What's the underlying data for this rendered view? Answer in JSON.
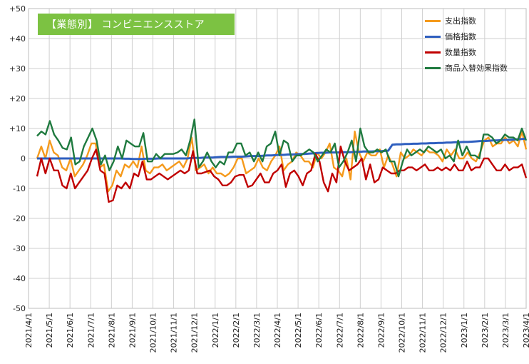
{
  "chart_data": {
    "type": "line",
    "title": "【業態別】 コンビニエンスストア",
    "ylim": [
      -50,
      50
    ],
    "y_ticks": [
      "+50",
      "+40",
      "+30",
      "+20",
      "+10",
      "0",
      "-10",
      "-20",
      "-30",
      "-40",
      "-50"
    ],
    "x_ticks": [
      "2021/4/1",
      "2021/5/1",
      "2021/6/1",
      "2021/7/1",
      "2021/8/1",
      "2021/9/1",
      "2021/10/1",
      "2021/11/1",
      "2021/12/1",
      "2022/1/1",
      "2022/2/1",
      "2022/3/1",
      "2022/4/1",
      "2022/5/1",
      "2022/6/1",
      "2022/7/1",
      "2022/8/1",
      "2022/9/1",
      "2022/10/1",
      "2022/11/1",
      "2022/12/1",
      "2023/1/1",
      "2023/2/1",
      "2023/3/1",
      "2023/4/1"
    ],
    "x_start": "2021-04-05",
    "x_step_days": 7,
    "grid": true,
    "legend_position": "top-right",
    "series": [
      {
        "name": "支出指数",
        "color": "#f59a1c",
        "values": [
          0,
          4,
          0,
          6,
          2,
          1,
          -3,
          -4,
          0,
          -6,
          -4,
          -2,
          1,
          5,
          5,
          -3,
          -2,
          -11,
          -9,
          -4,
          -6,
          -2,
          -3,
          -1,
          -3,
          4,
          -4,
          -5,
          -3,
          -3,
          -2,
          -4,
          -3,
          -2,
          -1,
          -3,
          0,
          7,
          -4,
          -3,
          -2,
          -5,
          -3,
          -5,
          -5,
          -6,
          -5,
          -3,
          0,
          0,
          -5,
          -4,
          -3,
          0,
          -3,
          -4,
          -1,
          1,
          4,
          -4,
          -2,
          -1,
          2,
          1,
          -1,
          -1,
          -3,
          2,
          0,
          2,
          5,
          -3,
          -4,
          -6,
          0,
          -7,
          9,
          2,
          -1,
          2,
          1,
          1,
          3,
          -3,
          1,
          -2,
          -6,
          2,
          0,
          1,
          3,
          2,
          1,
          3,
          2,
          2,
          1,
          -1,
          3,
          1,
          3,
          0,
          0,
          2,
          0,
          -1,
          2,
          6,
          7,
          4,
          5,
          5,
          7,
          5,
          6,
          4,
          9,
          3
        ],
        "visible_dates": "2021/4/1–2023/4/1"
      },
      {
        "name": "価格指数",
        "color": "#2f5fbf",
        "values": [
          0,
          0,
          0,
          0,
          0,
          0,
          0,
          0,
          0,
          0,
          0,
          0,
          0,
          0,
          0,
          0,
          0,
          0,
          0,
          0,
          0,
          -0.1,
          -0.1,
          -0.2,
          -0.2,
          -0.2,
          -0.1,
          -0.1,
          -0.1,
          0,
          0,
          0,
          0,
          0,
          0,
          0,
          0,
          0.2,
          0.2,
          0.2,
          0.3,
          0.3,
          0.3,
          0.4,
          0.5,
          0.5,
          0.5,
          0.6,
          0.6,
          0.6,
          0.7,
          0.8,
          0.8,
          0.8,
          0.9,
          1,
          1,
          1.1,
          1.2,
          1.2,
          1.3,
          1.3,
          1.4,
          1.5,
          1.5,
          1.6,
          1.7,
          1.8,
          1.9,
          1.9,
          2,
          2,
          2,
          2.1,
          2.1,
          2.1,
          2.2,
          2.2,
          2.3,
          2.3,
          2.3,
          2.4,
          2.4,
          2.5,
          2.6,
          4.6,
          4.7,
          4.7,
          4.8,
          4.8,
          4.9,
          4.9,
          5,
          5,
          5.1,
          5.1,
          5.2,
          5.2,
          5.3,
          5.3,
          5.4,
          5.4,
          5.5,
          5.5,
          5.6,
          5.7,
          5.8,
          5.8,
          5.9,
          6,
          6,
          6.1,
          6.2,
          6.2,
          6.3,
          6.4,
          6.5,
          6.6
        ]
      },
      {
        "name": "数量指数",
        "color": "#c00000",
        "values": [
          -6,
          0,
          -5,
          0,
          -4,
          -4,
          -9,
          -10,
          -5,
          -10,
          -8,
          -6,
          -4,
          0,
          3,
          -4,
          -5,
          -14.5,
          -14,
          -9,
          -10,
          -8,
          -10,
          -5,
          -6,
          -1,
          -7,
          -7,
          -6,
          -5,
          -6,
          -7,
          -6,
          -5,
          -4,
          -5,
          -4,
          2.5,
          -5,
          -5,
          -4.5,
          -4,
          -6,
          -7,
          -9,
          -9,
          -8,
          -6,
          -5.5,
          -5.5,
          -9.5,
          -9,
          -7,
          -5,
          -8,
          -8,
          -5,
          -4,
          -2,
          -9.5,
          -5,
          -4,
          -6,
          -9,
          -5,
          -4,
          1.5,
          -1,
          -8,
          -11,
          -5,
          -8,
          4,
          -1,
          -4,
          -3,
          -2,
          0,
          -7,
          -2,
          -8,
          -7,
          -3,
          -4,
          -5,
          -5,
          -4,
          -4,
          -3,
          -3,
          -4,
          -3,
          -2,
          -4,
          -4,
          -3,
          -4,
          -3,
          -4,
          -2,
          -4,
          -4,
          -1,
          -4,
          -3,
          -3,
          0,
          0,
          -2,
          -4,
          -4,
          -2,
          -4,
          -3,
          -3,
          -2,
          -6.5
        ]
      },
      {
        "name": "商品入替効果指数",
        "color": "#1f7a3f",
        "values": [
          7.5,
          9,
          8,
          12.5,
          8,
          6,
          3.5,
          3,
          7,
          -2,
          -1,
          4,
          7,
          10,
          6,
          -2,
          1,
          -4,
          -1,
          4,
          0,
          6,
          5,
          4,
          4,
          8.5,
          -1,
          -1,
          1.5,
          0,
          1.5,
          1.5,
          1.5,
          2,
          3,
          1,
          6,
          13,
          -3,
          -1,
          2,
          -1,
          -3,
          -1,
          -2,
          2,
          2,
          5,
          5,
          1,
          2,
          -1,
          2,
          -1,
          4,
          5,
          9,
          1,
          6,
          5,
          -1,
          1,
          1,
          2,
          3,
          2,
          -1,
          1,
          3,
          2,
          5,
          -3,
          -1,
          2,
          6,
          -1,
          10,
          4,
          2,
          2,
          3,
          2,
          3,
          -1,
          -1,
          -6,
          -1,
          3,
          1,
          2,
          3,
          2,
          4,
          3,
          2,
          3,
          0,
          1,
          -1,
          6,
          1,
          4,
          1,
          1,
          0,
          8,
          8,
          7,
          5,
          6,
          8,
          7,
          7,
          6,
          10,
          6
        ]
      }
    ]
  }
}
